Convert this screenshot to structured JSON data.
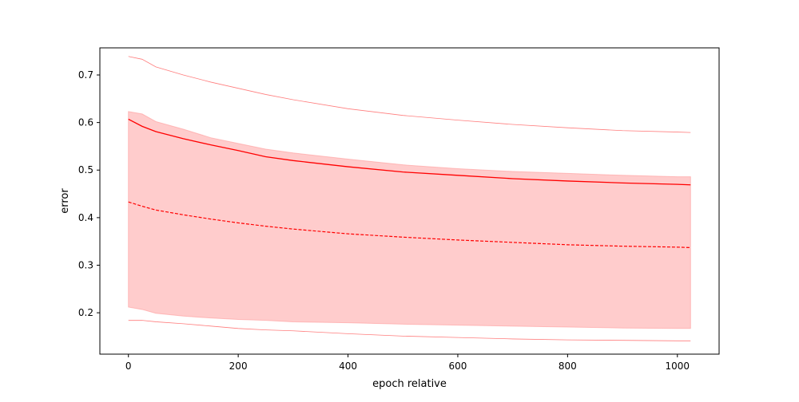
{
  "chart_data": {
    "type": "line",
    "title": "",
    "xlabel": "epoch relative",
    "ylabel": "error",
    "xlim": [
      -52,
      1076
    ],
    "ylim": [
      0.113,
      0.757
    ],
    "x_ticks": [
      0,
      200,
      400,
      600,
      800,
      1000
    ],
    "y_ticks": [
      0.2,
      0.3,
      0.4,
      0.5,
      0.6,
      0.7
    ],
    "x_tick_labels": [
      "0",
      "200",
      "400",
      "600",
      "800",
      "1000"
    ],
    "y_tick_labels": [
      "0.2",
      "0.3",
      "0.4",
      "0.5",
      "0.6",
      "0.7"
    ],
    "grid": false,
    "x": [
      0,
      25,
      50,
      100,
      150,
      200,
      250,
      300,
      400,
      500,
      600,
      700,
      800,
      900,
      1000,
      1024
    ],
    "series": [
      {
        "role": "band_upper",
        "style": "fill",
        "color": "#ff9999",
        "values": [
          0.623,
          0.618,
          0.602,
          0.586,
          0.568,
          0.556,
          0.544,
          0.536,
          0.523,
          0.511,
          0.503,
          0.497,
          0.493,
          0.489,
          0.486,
          0.486
        ]
      },
      {
        "role": "band_lower",
        "style": "fill",
        "color": "#ff9999",
        "values": [
          0.212,
          0.207,
          0.199,
          0.193,
          0.189,
          0.186,
          0.184,
          0.181,
          0.179,
          0.176,
          0.174,
          0.172,
          0.17,
          0.168,
          0.167,
          0.167
        ]
      },
      {
        "role": "mean",
        "style": "solid",
        "color": "#ff0000",
        "values": [
          0.607,
          0.592,
          0.581,
          0.566,
          0.553,
          0.541,
          0.528,
          0.52,
          0.507,
          0.496,
          0.489,
          0.482,
          0.477,
          0.473,
          0.47,
          0.469
        ]
      },
      {
        "role": "median",
        "style": "dashed",
        "color": "#ff0000",
        "values": [
          0.433,
          0.424,
          0.416,
          0.406,
          0.397,
          0.389,
          0.382,
          0.376,
          0.366,
          0.359,
          0.353,
          0.348,
          0.343,
          0.34,
          0.338,
          0.337
        ]
      },
      {
        "role": "max",
        "style": "thin",
        "color": "#ff6666",
        "values": [
          0.739,
          0.733,
          0.717,
          0.7,
          0.685,
          0.672,
          0.659,
          0.648,
          0.629,
          0.615,
          0.605,
          0.596,
          0.589,
          0.583,
          0.58,
          0.579
        ]
      },
      {
        "role": "min",
        "style": "thin",
        "color": "#ff6666",
        "values": [
          0.184,
          0.184,
          0.181,
          0.177,
          0.172,
          0.167,
          0.164,
          0.162,
          0.156,
          0.151,
          0.148,
          0.145,
          0.143,
          0.142,
          0.141,
          0.141
        ]
      }
    ]
  }
}
